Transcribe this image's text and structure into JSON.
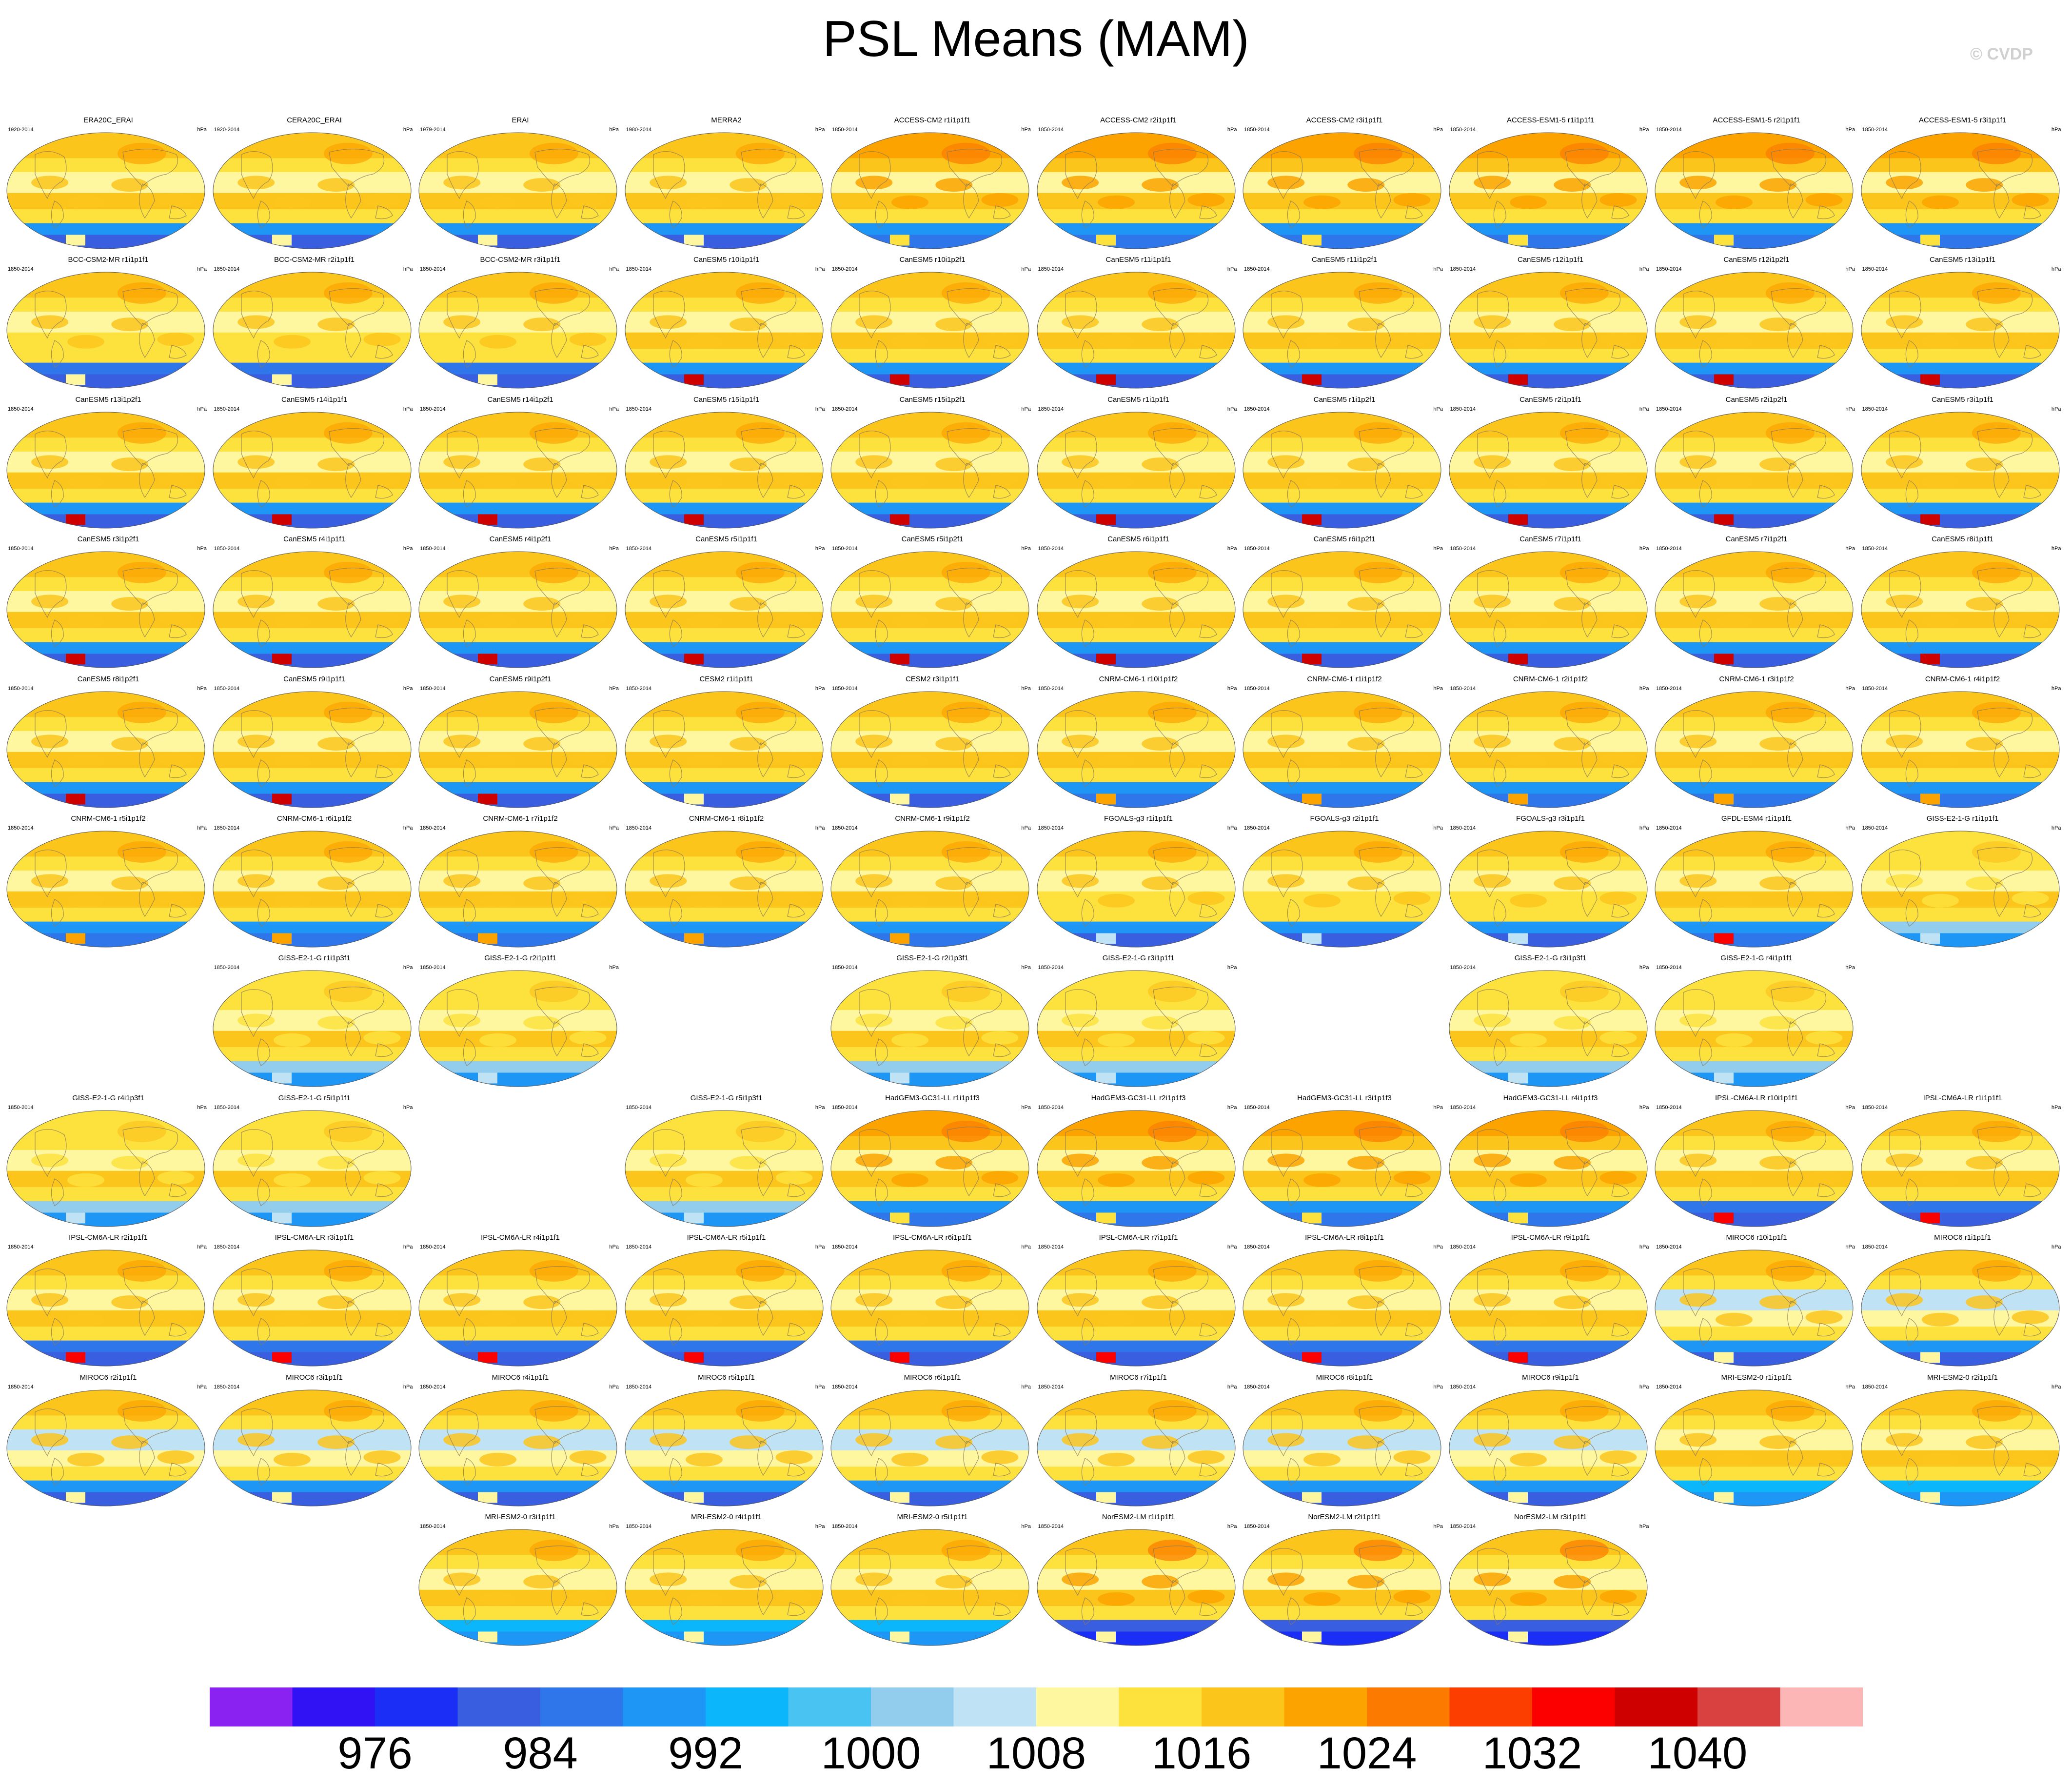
{
  "title": "PSL Means (MAM)",
  "watermark": "© CVDP",
  "units": "hPa",
  "colors": {
    "levels": [
      "#8a22f2",
      "#3012f5",
      "#1a2ef5",
      "#3a5ee0",
      "#2f76ea",
      "#1e96f5",
      "#0bb6fb",
      "#49c3f2",
      "#92cdee",
      "#bfe3f5",
      "#fff7a0",
      "#fde23e",
      "#fbc51c",
      "#fca300",
      "#fc7a00",
      "#fc3f00",
      "#fc0000",
      "#cf0000",
      "#d94040",
      "#fcb6b6"
    ]
  },
  "chart_data": {
    "type": "heatmap",
    "title": "PSL Means (MAM)",
    "units": "hPa",
    "description_type": "small multiples of global maps",
    "colorbar": {
      "tick_labels": [
        "976",
        "984",
        "992",
        "1000",
        "1008",
        "1016",
        "1024",
        "1032",
        "1040"
      ],
      "tick_values": [
        976,
        984,
        992,
        1000,
        1008,
        1016,
        1024,
        1032,
        1040
      ],
      "bins": 20
    },
    "rows": [
      [
        {
          "name": "ERA20C_ERAI",
          "years": "1920-2014",
          "style": "obs"
        },
        {
          "name": "CERA20C_ERAI",
          "years": "1920-2014",
          "style": "obs"
        },
        {
          "name": "ERAI",
          "years": "1979-2014",
          "style": "obs"
        },
        {
          "name": "MERRA2",
          "years": "1980-2014",
          "style": "obs"
        },
        {
          "name": "ACCESS-CM2 r1i1p1f1",
          "years": "1850-2014",
          "style": "access"
        },
        {
          "name": "ACCESS-CM2 r2i1p1f1",
          "years": "1850-2014",
          "style": "access"
        },
        {
          "name": "ACCESS-CM2 r3i1p1f1",
          "years": "1850-2014",
          "style": "access"
        },
        {
          "name": "ACCESS-ESM1-5 r1i1p1f1",
          "years": "1850-2014",
          "style": "access"
        },
        {
          "name": "ACCESS-ESM1-5 r2i1p1f1",
          "years": "1850-2014",
          "style": "access"
        },
        {
          "name": "ACCESS-ESM1-5 r3i1p1f1",
          "years": "1850-2014",
          "style": "access"
        }
      ],
      [
        {
          "name": "BCC-CSM2-MR r1i1p1f1",
          "years": "1850-2014",
          "style": "bcc"
        },
        {
          "name": "BCC-CSM2-MR r2i1p1f1",
          "years": "1850-2014",
          "style": "bcc"
        },
        {
          "name": "BCC-CSM2-MR r3i1p1f1",
          "years": "1850-2014",
          "style": "bcc"
        },
        {
          "name": "CanESM5 r10i1p1f1",
          "years": "1850-2014",
          "style": "canesm"
        },
        {
          "name": "CanESM5 r10i1p2f1",
          "years": "1850-2014",
          "style": "canesm"
        },
        {
          "name": "CanESM5 r11i1p1f1",
          "years": "1850-2014",
          "style": "canesm"
        },
        {
          "name": "CanESM5 r11i1p2f1",
          "years": "1850-2014",
          "style": "canesm"
        },
        {
          "name": "CanESM5 r12i1p1f1",
          "years": "1850-2014",
          "style": "canesm"
        },
        {
          "name": "CanESM5 r12i1p2f1",
          "years": "1850-2014",
          "style": "canesm"
        },
        {
          "name": "CanESM5 r13i1p1f1",
          "years": "1850-2014",
          "style": "canesm"
        }
      ],
      [
        {
          "name": "CanESM5 r13i1p2f1",
          "years": "1850-2014",
          "style": "canesm"
        },
        {
          "name": "CanESM5 r14i1p1f1",
          "years": "1850-2014",
          "style": "canesm"
        },
        {
          "name": "CanESM5 r14i1p2f1",
          "years": "1850-2014",
          "style": "canesm"
        },
        {
          "name": "CanESM5 r15i1p1f1",
          "years": "1850-2014",
          "style": "canesm"
        },
        {
          "name": "CanESM5 r15i1p2f1",
          "years": "1850-2014",
          "style": "canesm"
        },
        {
          "name": "CanESM5 r1i1p1f1",
          "years": "1850-2014",
          "style": "canesm"
        },
        {
          "name": "CanESM5 r1i1p2f1",
          "years": "1850-2014",
          "style": "canesm"
        },
        {
          "name": "CanESM5 r2i1p1f1",
          "years": "1850-2014",
          "style": "canesm"
        },
        {
          "name": "CanESM5 r2i1p2f1",
          "years": "1850-2014",
          "style": "canesm"
        },
        {
          "name": "CanESM5 r3i1p1f1",
          "years": "1850-2014",
          "style": "canesm"
        }
      ],
      [
        {
          "name": "CanESM5 r3i1p2f1",
          "years": "1850-2014",
          "style": "canesm"
        },
        {
          "name": "CanESM5 r4i1p1f1",
          "years": "1850-2014",
          "style": "canesm"
        },
        {
          "name": "CanESM5 r4i1p2f1",
          "years": "1850-2014",
          "style": "canesm"
        },
        {
          "name": "CanESM5 r5i1p1f1",
          "years": "1850-2014",
          "style": "canesm"
        },
        {
          "name": "CanESM5 r5i1p2f1",
          "years": "1850-2014",
          "style": "canesm"
        },
        {
          "name": "CanESM5 r6i1p1f1",
          "years": "1850-2014",
          "style": "canesm"
        },
        {
          "name": "CanESM5 r6i1p2f1",
          "years": "1850-2014",
          "style": "canesm"
        },
        {
          "name": "CanESM5 r7i1p1f1",
          "years": "1850-2014",
          "style": "canesm"
        },
        {
          "name": "CanESM5 r7i1p2f1",
          "years": "1850-2014",
          "style": "canesm"
        },
        {
          "name": "CanESM5 r8i1p1f1",
          "years": "1850-2014",
          "style": "canesm"
        }
      ],
      [
        {
          "name": "CanESM5 r8i1p2f1",
          "years": "1850-2014",
          "style": "canesm"
        },
        {
          "name": "CanESM5 r9i1p1f1",
          "years": "1850-2014",
          "style": "canesm"
        },
        {
          "name": "CanESM5 r9i1p2f1",
          "years": "1850-2014",
          "style": "canesm"
        },
        {
          "name": "CESM2 r1i1p1f1",
          "years": "1850-2014",
          "style": "cesm"
        },
        {
          "name": "CESM2 r3i1p1f1",
          "years": "1850-2014",
          "style": "cesm"
        },
        {
          "name": "CNRM-CM6-1 r10i1p1f2",
          "years": "1850-2014",
          "style": "cnrm"
        },
        {
          "name": "CNRM-CM6-1 r1i1p1f2",
          "years": "1850-2014",
          "style": "cnrm"
        },
        {
          "name": "CNRM-CM6-1 r2i1p1f2",
          "years": "1850-2014",
          "style": "cnrm"
        },
        {
          "name": "CNRM-CM6-1 r3i1p1f2",
          "years": "1850-2014",
          "style": "cnrm"
        },
        {
          "name": "CNRM-CM6-1 r4i1p1f2",
          "years": "1850-2014",
          "style": "cnrm"
        }
      ],
      [
        {
          "name": "CNRM-CM6-1 r5i1p1f2",
          "years": "1850-2014",
          "style": "cnrm"
        },
        {
          "name": "CNRM-CM6-1 r6i1p1f2",
          "years": "1850-2014",
          "style": "cnrm"
        },
        {
          "name": "CNRM-CM6-1 r7i1p1f2",
          "years": "1850-2014",
          "style": "cnrm"
        },
        {
          "name": "CNRM-CM6-1 r8i1p1f2",
          "years": "1850-2014",
          "style": "cnrm"
        },
        {
          "name": "CNRM-CM6-1 r9i1p1f2",
          "years": "1850-2014",
          "style": "cnrm"
        },
        {
          "name": "FGOALS-g3 r1i1p1f1",
          "years": "1850-2014",
          "style": "fgoals"
        },
        {
          "name": "FGOALS-g3 r2i1p1f1",
          "years": "1850-2014",
          "style": "fgoals"
        },
        {
          "name": "FGOALS-g3 r3i1p1f1",
          "years": "1850-2014",
          "style": "fgoals"
        },
        {
          "name": "GFDL-ESM4 r1i1p1f1",
          "years": "1850-2014",
          "style": "gfdl"
        },
        {
          "name": "GISS-E2-1-G r1i1p1f1",
          "years": "1850-2014",
          "style": "giss"
        }
      ],
      [
        null,
        {
          "name": "GISS-E2-1-G r1i1p3f1",
          "years": "1850-2014",
          "style": "giss"
        },
        {
          "name": "GISS-E2-1-G r2i1p1f1",
          "years": "1850-2014",
          "style": "giss"
        },
        null,
        {
          "name": "GISS-E2-1-G r2i1p3f1",
          "years": "1850-2014",
          "style": "giss"
        },
        {
          "name": "GISS-E2-1-G r3i1p1f1",
          "years": "1850-2014",
          "style": "giss"
        },
        null,
        {
          "name": "GISS-E2-1-G r3i1p3f1",
          "years": "1850-2014",
          "style": "giss"
        },
        {
          "name": "GISS-E2-1-G r4i1p1f1",
          "years": "1850-2014",
          "style": "giss"
        },
        null
      ],
      [
        {
          "name": "GISS-E2-1-G r4i1p3f1",
          "years": "1850-2014",
          "style": "giss"
        },
        {
          "name": "GISS-E2-1-G r5i1p1f1",
          "years": "1850-2014",
          "style": "giss"
        },
        null,
        {
          "name": "GISS-E2-1-G r5i1p3f1",
          "years": "1850-2014",
          "style": "giss"
        },
        {
          "name": "HadGEM3-GC31-LL r1i1p1f3",
          "years": "1850-2014",
          "style": "hadgem"
        },
        {
          "name": "HadGEM3-GC31-LL r2i1p1f3",
          "years": "1850-2014",
          "style": "hadgem"
        },
        {
          "name": "HadGEM3-GC31-LL r3i1p1f3",
          "years": "1850-2014",
          "style": "hadgem"
        },
        {
          "name": "HadGEM3-GC31-LL r4i1p1f3",
          "years": "1850-2014",
          "style": "hadgem"
        },
        {
          "name": "IPSL-CM6A-LR r10i1p1f1",
          "years": "1850-2014",
          "style": "ipsl"
        },
        {
          "name": "IPSL-CM6A-LR r1i1p1f1",
          "years": "1850-2014",
          "style": "ipsl"
        }
      ],
      [
        {
          "name": "IPSL-CM6A-LR r2i1p1f1",
          "years": "1850-2014",
          "style": "ipsl"
        },
        {
          "name": "IPSL-CM6A-LR r3i1p1f1",
          "years": "1850-2014",
          "style": "ipsl"
        },
        {
          "name": "IPSL-CM6A-LR r4i1p1f1",
          "years": "1850-2014",
          "style": "ipsl"
        },
        {
          "name": "IPSL-CM6A-LR r5i1p1f1",
          "years": "1850-2014",
          "style": "ipsl"
        },
        {
          "name": "IPSL-CM6A-LR r6i1p1f1",
          "years": "1850-2014",
          "style": "ipsl"
        },
        {
          "name": "IPSL-CM6A-LR r7i1p1f1",
          "years": "1850-2014",
          "style": "ipsl"
        },
        {
          "name": "IPSL-CM6A-LR r8i1p1f1",
          "years": "1850-2014",
          "style": "ipsl"
        },
        {
          "name": "IPSL-CM6A-LR r9i1p1f1",
          "years": "1850-2014",
          "style": "ipsl"
        },
        {
          "name": "MIROC6 r10i1p1f1",
          "years": "1850-2014",
          "style": "miroc"
        },
        {
          "name": "MIROC6 r1i1p1f1",
          "years": "1850-2014",
          "style": "miroc"
        }
      ],
      [
        {
          "name": "MIROC6 r2i1p1f1",
          "years": "1850-2014",
          "style": "miroc"
        },
        {
          "name": "MIROC6 r3i1p1f1",
          "years": "1850-2014",
          "style": "miroc"
        },
        {
          "name": "MIROC6 r4i1p1f1",
          "years": "1850-2014",
          "style": "miroc"
        },
        {
          "name": "MIROC6 r5i1p1f1",
          "years": "1850-2014",
          "style": "miroc"
        },
        {
          "name": "MIROC6 r6i1p1f1",
          "years": "1850-2014",
          "style": "miroc"
        },
        {
          "name": "MIROC6 r7i1p1f1",
          "years": "1850-2014",
          "style": "miroc"
        },
        {
          "name": "MIROC6 r8i1p1f1",
          "years": "1850-2014",
          "style": "miroc"
        },
        {
          "name": "MIROC6 r9i1p1f1",
          "years": "1850-2014",
          "style": "miroc"
        },
        {
          "name": "MRI-ESM2-0 r1i1p1f1",
          "years": "1850-2014",
          "style": "mri"
        },
        {
          "name": "MRI-ESM2-0 r2i1p1f1",
          "years": "1850-2014",
          "style": "mri"
        }
      ],
      [
        null,
        null,
        {
          "name": "MRI-ESM2-0 r3i1p1f1",
          "years": "1850-2014",
          "style": "mri"
        },
        {
          "name": "MRI-ESM2-0 r4i1p1f1",
          "years": "1850-2014",
          "style": "mri"
        },
        {
          "name": "MRI-ESM2-0 r5i1p1f1",
          "years": "1850-2014",
          "style": "mri"
        },
        {
          "name": "NorESM2-LM r1i1p1f1",
          "years": "1850-2014",
          "style": "noresm"
        },
        {
          "name": "NorESM2-LM r2i1p1f1",
          "years": "1850-2014",
          "style": "noresm"
        },
        {
          "name": "NorESM2-LM r3i1p1f1",
          "years": "1850-2014",
          "style": "noresm"
        },
        null,
        null
      ]
    ]
  }
}
